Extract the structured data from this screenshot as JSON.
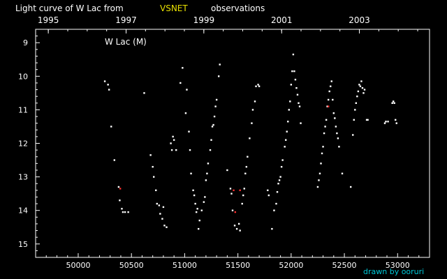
{
  "chart_data": {
    "type": "scatter",
    "title_parts": [
      "Light curve of W Lac from",
      "VSNET",
      "observations"
    ],
    "colors": {
      "background": "#000000",
      "axes": "#ffffff",
      "highlight": "#e8e000",
      "credit": "#00c8d8",
      "visual": "#ffffff",
      "special": "#ff3030"
    },
    "star_label": "W Lac (M)",
    "credit": "drawn by ooruri",
    "xlim": [
      49600,
      53300
    ],
    "ylim": [
      15.4,
      8.6
    ],
    "x_ticks": [
      "50000",
      "50500",
      "51000",
      "51500",
      "52000",
      "52500",
      "53000"
    ],
    "x_tick_values": [
      50000,
      50500,
      51000,
      51500,
      52000,
      52500,
      53000
    ],
    "top_ticks": [
      "1995",
      "1997",
      "1999",
      "2001",
      "2003"
    ],
    "top_tick_values": [
      49719,
      50450,
      51180,
      51911,
      52641
    ],
    "y_ticks": [
      "9",
      "10",
      "11",
      "12",
      "13",
      "14",
      "15"
    ],
    "y_tick_values": [
      9,
      10,
      11,
      12,
      13,
      14,
      15
    ],
    "series": [
      {
        "name": "",
        "color": "#ffffff",
        "points": [
          [
            50250,
            10.15
          ],
          [
            50280,
            10.25
          ],
          [
            50290,
            10.4
          ],
          [
            50310,
            11.5
          ],
          [
            50340,
            12.5
          ],
          [
            50380,
            13.3
          ],
          [
            50390,
            13.7
          ],
          [
            50410,
            13.95
          ],
          [
            50420,
            14.05
          ],
          [
            50440,
            14.05
          ],
          [
            50470,
            14.05
          ],
          [
            50620,
            10.5
          ],
          [
            50680,
            12.35
          ],
          [
            50700,
            12.7
          ],
          [
            50710,
            13.0
          ],
          [
            50730,
            13.4
          ],
          [
            50740,
            13.8
          ],
          [
            50760,
            13.85
          ],
          [
            50770,
            14.1
          ],
          [
            50790,
            14.25
          ],
          [
            50800,
            13.9
          ],
          [
            50810,
            14.45
          ],
          [
            50830,
            14.5
          ],
          [
            50870,
            12.0
          ],
          [
            50880,
            12.2
          ],
          [
            50890,
            11.8
          ],
          [
            50900,
            11.9
          ],
          [
            50920,
            12.2
          ],
          [
            50960,
            10.2
          ],
          [
            50980,
            9.75
          ],
          [
            51010,
            11.1
          ],
          [
            51020,
            10.4
          ],
          [
            51040,
            11.65
          ],
          [
            51050,
            12.2
          ],
          [
            51060,
            12.9
          ],
          [
            51080,
            13.4
          ],
          [
            51090,
            13.55
          ],
          [
            51100,
            13.8
          ],
          [
            51110,
            14.05
          ],
          [
            51120,
            13.95
          ],
          [
            51130,
            14.55
          ],
          [
            51140,
            14.3
          ],
          [
            51160,
            14.0
          ],
          [
            51180,
            13.75
          ],
          [
            51190,
            13.6
          ],
          [
            51200,
            13.1
          ],
          [
            51210,
            12.9
          ],
          [
            51220,
            12.6
          ],
          [
            51240,
            12.2
          ],
          [
            51250,
            11.9
          ],
          [
            51260,
            11.5
          ],
          [
            51270,
            11.45
          ],
          [
            51280,
            11.2
          ],
          [
            51290,
            10.9
          ],
          [
            51300,
            10.7
          ],
          [
            51320,
            10.0
          ],
          [
            51330,
            9.65
          ],
          [
            51400,
            12.8
          ],
          [
            51430,
            13.35
          ],
          [
            51440,
            13.5
          ],
          [
            51450,
            14.0
          ],
          [
            51470,
            14.45
          ],
          [
            51490,
            14.55
          ],
          [
            51510,
            14.4
          ],
          [
            51520,
            14.6
          ],
          [
            51540,
            13.8
          ],
          [
            51550,
            13.55
          ],
          [
            51560,
            13.35
          ],
          [
            51570,
            12.9
          ],
          [
            51580,
            12.7
          ],
          [
            51590,
            12.4
          ],
          [
            51610,
            11.85
          ],
          [
            51630,
            11.4
          ],
          [
            51640,
            11.0
          ],
          [
            51660,
            10.75
          ],
          [
            51670,
            10.3
          ],
          [
            51690,
            10.25
          ],
          [
            51700,
            10.3
          ],
          [
            51780,
            13.4
          ],
          [
            51790,
            13.55
          ],
          [
            51820,
            14.55
          ],
          [
            51840,
            14.0
          ],
          [
            51860,
            13.8
          ],
          [
            51870,
            13.45
          ],
          [
            51880,
            13.2
          ],
          [
            51890,
            13.1
          ],
          [
            51900,
            13.0
          ],
          [
            51910,
            12.7
          ],
          [
            51920,
            12.5
          ],
          [
            51940,
            12.1
          ],
          [
            51950,
            11.9
          ],
          [
            51960,
            11.65
          ],
          [
            51970,
            11.35
          ],
          [
            51980,
            11.0
          ],
          [
            51990,
            10.75
          ],
          [
            52000,
            10.25
          ],
          [
            52010,
            9.85
          ],
          [
            52020,
            9.35
          ],
          [
            52030,
            9.85
          ],
          [
            52040,
            10.1
          ],
          [
            52050,
            10.35
          ],
          [
            52060,
            10.55
          ],
          [
            52070,
            10.8
          ],
          [
            52080,
            10.9
          ],
          [
            52090,
            11.4
          ],
          [
            52250,
            13.3
          ],
          [
            52260,
            13.1
          ],
          [
            52270,
            12.9
          ],
          [
            52280,
            12.6
          ],
          [
            52290,
            12.3
          ],
          [
            52300,
            12.1
          ],
          [
            52310,
            11.7
          ],
          [
            52320,
            11.5
          ],
          [
            52330,
            11.3
          ],
          [
            52340,
            10.9
          ],
          [
            52350,
            10.7
          ],
          [
            52360,
            10.45
          ],
          [
            52370,
            10.3
          ],
          [
            52380,
            10.15
          ],
          [
            52390,
            10.7
          ],
          [
            52400,
            11.1
          ],
          [
            52410,
            11.25
          ],
          [
            52420,
            11.5
          ],
          [
            52430,
            11.7
          ],
          [
            52440,
            11.85
          ],
          [
            52450,
            12.1
          ],
          [
            52480,
            12.9
          ],
          [
            52560,
            13.3
          ],
          [
            52580,
            11.75
          ],
          [
            52590,
            11.3
          ],
          [
            52600,
            11.0
          ],
          [
            52610,
            10.8
          ],
          [
            52620,
            10.6
          ],
          [
            52630,
            10.45
          ],
          [
            52640,
            10.25
          ],
          [
            52650,
            10.3
          ],
          [
            52660,
            10.15
          ],
          [
            52670,
            10.35
          ],
          [
            52680,
            10.5
          ],
          [
            52690,
            10.4
          ],
          [
            52710,
            11.3
          ],
          [
            52720,
            11.3
          ],
          [
            52880,
            11.4
          ],
          [
            52890,
            11.35
          ],
          [
            52910,
            11.35
          ],
          [
            52950,
            10.8
          ],
          [
            52960,
            10.75
          ],
          [
            52970,
            10.8
          ],
          [
            52980,
            11.3
          ],
          [
            52990,
            11.4
          ]
        ]
      },
      {
        "name": "",
        "color": "#ff3030",
        "points": [
          [
            50395,
            13.35
          ],
          [
            51460,
            13.4
          ],
          [
            51475,
            14.05
          ],
          [
            51520,
            13.4
          ],
          [
            52350,
            10.9
          ]
        ]
      }
    ]
  }
}
